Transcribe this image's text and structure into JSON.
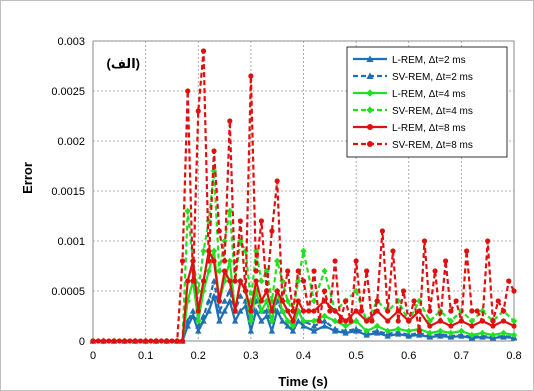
{
  "chart_data": {
    "type": "line",
    "xlabel": "Time (s)",
    "ylabel": "Error",
    "annotation": "(الف)",
    "xlim": [
      0,
      0.8
    ],
    "ylim": [
      0,
      0.003
    ],
    "xticks": [
      0,
      0.1,
      0.2,
      0.3,
      0.4,
      0.5,
      0.6,
      0.7,
      0.8
    ],
    "xtick_labels": [
      "0",
      "0.1",
      "0.2",
      "0.3",
      "0.4",
      "0.5",
      "0.6",
      "0.7",
      "0.8"
    ],
    "yticks": [
      0,
      0.0005,
      0.001,
      0.0015,
      0.002,
      0.0025,
      0.003
    ],
    "ytick_labels": [
      "0",
      "0.0005",
      "0.001",
      "0.0015",
      "0.002",
      "0.0025",
      "0.003"
    ],
    "grid": true,
    "legend_position": "top-right",
    "series": [
      {
        "name": "L-REM, Δt=2 ms",
        "color": "#1f6fb5",
        "dashed": false,
        "marker": "triangle",
        "x": [
          0,
          0.02,
          0.04,
          0.06,
          0.08,
          0.1,
          0.12,
          0.14,
          0.16,
          0.17,
          0.18,
          0.19,
          0.2,
          0.21,
          0.22,
          0.23,
          0.24,
          0.25,
          0.26,
          0.27,
          0.28,
          0.29,
          0.3,
          0.31,
          0.32,
          0.33,
          0.34,
          0.35,
          0.36,
          0.37,
          0.38,
          0.39,
          0.4,
          0.42,
          0.44,
          0.46,
          0.48,
          0.5,
          0.52,
          0.54,
          0.56,
          0.58,
          0.6,
          0.62,
          0.64,
          0.66,
          0.68,
          0.7,
          0.72,
          0.74,
          0.76,
          0.78,
          0.8
        ],
        "y": [
          0,
          0,
          0,
          0,
          0,
          0,
          0,
          0,
          0,
          0,
          0.00015,
          0.00025,
          0.0001,
          0.0002,
          0.0003,
          0.00045,
          0.0002,
          0.0003,
          0.0004,
          0.0002,
          0.0003,
          0.00035,
          0.0001,
          0.0003,
          0.0002,
          0.00025,
          0.0001,
          0.0003,
          0.0002,
          0.00015,
          0.0001,
          0.0002,
          0.00015,
          0.0001,
          0.00015,
          0.0001,
          8e-05,
          0.0001,
          6e-05,
          8e-05,
          5e-05,
          7e-05,
          5e-05,
          6e-05,
          4e-05,
          5e-05,
          4e-05,
          5e-05,
          3e-05,
          4e-05,
          3e-05,
          4e-05,
          3e-05
        ]
      },
      {
        "name": "SV-REM, Δt=2 ms",
        "color": "#1f6fb5",
        "dashed": true,
        "marker": "triangle",
        "x": [
          0,
          0.02,
          0.04,
          0.06,
          0.08,
          0.1,
          0.12,
          0.14,
          0.16,
          0.17,
          0.18,
          0.19,
          0.2,
          0.21,
          0.22,
          0.23,
          0.24,
          0.25,
          0.26,
          0.27,
          0.28,
          0.29,
          0.3,
          0.31,
          0.32,
          0.33,
          0.34,
          0.35,
          0.36,
          0.37,
          0.38,
          0.39,
          0.4,
          0.42,
          0.44,
          0.46,
          0.48,
          0.5,
          0.52,
          0.54,
          0.56,
          0.58,
          0.6,
          0.62,
          0.64,
          0.66,
          0.68,
          0.7,
          0.72,
          0.74,
          0.76,
          0.78,
          0.8
        ],
        "y": [
          0,
          0,
          0,
          0,
          0,
          0,
          0,
          0,
          0,
          0,
          0.0002,
          0.0003,
          0.00015,
          0.00025,
          0.0004,
          0.0006,
          0.0003,
          0.0004,
          0.0005,
          0.0003,
          0.00045,
          0.0004,
          0.0002,
          0.0004,
          0.0003,
          0.0003,
          0.0002,
          0.0004,
          0.0003,
          0.0002,
          0.00015,
          0.0003,
          0.0002,
          0.00015,
          0.0002,
          0.00012,
          0.0001,
          0.00012,
          8e-05,
          0.0001,
          7e-05,
          9e-05,
          6e-05,
          8e-05,
          5e-05,
          7e-05,
          5e-05,
          6e-05,
          4e-05,
          5e-05,
          4e-05,
          5e-05,
          4e-05
        ]
      },
      {
        "name": "L-REM, Δt=4 ms",
        "color": "#22e022",
        "dashed": false,
        "marker": "diamond",
        "x": [
          0,
          0.02,
          0.04,
          0.06,
          0.08,
          0.1,
          0.12,
          0.14,
          0.16,
          0.17,
          0.18,
          0.19,
          0.2,
          0.21,
          0.22,
          0.23,
          0.24,
          0.25,
          0.26,
          0.27,
          0.28,
          0.29,
          0.3,
          0.31,
          0.32,
          0.33,
          0.34,
          0.35,
          0.36,
          0.37,
          0.38,
          0.39,
          0.4,
          0.42,
          0.44,
          0.46,
          0.48,
          0.5,
          0.52,
          0.54,
          0.56,
          0.58,
          0.6,
          0.62,
          0.64,
          0.66,
          0.68,
          0.7,
          0.72,
          0.74,
          0.76,
          0.78,
          0.8
        ],
        "y": [
          0,
          0,
          0,
          0,
          0,
          0,
          0,
          0,
          0,
          0,
          0.0004,
          0.0006,
          0.0002,
          0.0005,
          0.0007,
          0.0009,
          0.0004,
          0.0006,
          0.0008,
          0.0003,
          0.0006,
          0.0005,
          0.0002,
          0.0005,
          0.0003,
          0.0004,
          0.0002,
          0.0005,
          0.0003,
          0.0002,
          0.00015,
          0.0003,
          0.0002,
          0.0002,
          0.00025,
          0.0002,
          0.00015,
          0.0002,
          0.0001,
          0.00015,
          0.0001,
          0.00012,
          0.0001,
          0.00012,
          8e-05,
          0.0001,
          8e-05,
          0.0001,
          6e-05,
          8e-05,
          6e-05,
          8e-05,
          6e-05
        ]
      },
      {
        "name": "SV-REM, Δt=4 ms",
        "color": "#22e022",
        "dashed": true,
        "marker": "diamond",
        "x": [
          0,
          0.02,
          0.04,
          0.06,
          0.08,
          0.1,
          0.12,
          0.14,
          0.16,
          0.17,
          0.18,
          0.19,
          0.2,
          0.21,
          0.22,
          0.23,
          0.24,
          0.25,
          0.26,
          0.27,
          0.28,
          0.29,
          0.3,
          0.31,
          0.32,
          0.33,
          0.34,
          0.35,
          0.36,
          0.37,
          0.38,
          0.39,
          0.4,
          0.42,
          0.44,
          0.46,
          0.48,
          0.5,
          0.52,
          0.54,
          0.56,
          0.58,
          0.6,
          0.62,
          0.64,
          0.66,
          0.68,
          0.7,
          0.72,
          0.74,
          0.76,
          0.78,
          0.8
        ],
        "y": [
          0,
          0,
          0,
          0,
          0,
          0,
          0,
          0,
          0,
          0,
          0.0013,
          0.0008,
          0.0005,
          0.0009,
          0.0012,
          0.0017,
          0.0007,
          0.001,
          0.0013,
          0.0006,
          0.001,
          0.0009,
          0.0004,
          0.0009,
          0.0006,
          0.0007,
          0.0004,
          0.0008,
          0.0006,
          0.0004,
          0.0003,
          0.0006,
          0.0009,
          0.0004,
          0.0007,
          0.0003,
          0.0004,
          0.0005,
          0.0002,
          0.0004,
          0.0003,
          0.0004,
          0.0002,
          0.0004,
          0.0002,
          0.0003,
          0.0002,
          0.0003,
          0.0002,
          0.0003,
          0.0002,
          0.0003,
          0.0002
        ]
      },
      {
        "name": "L-REM, Δt=8 ms",
        "color": "#e01010",
        "dashed": false,
        "marker": "circle",
        "x": [
          0,
          0.02,
          0.04,
          0.06,
          0.08,
          0.1,
          0.12,
          0.14,
          0.16,
          0.17,
          0.18,
          0.19,
          0.2,
          0.21,
          0.22,
          0.23,
          0.24,
          0.25,
          0.26,
          0.27,
          0.28,
          0.29,
          0.3,
          0.31,
          0.32,
          0.33,
          0.34,
          0.35,
          0.36,
          0.37,
          0.38,
          0.39,
          0.4,
          0.42,
          0.44,
          0.46,
          0.48,
          0.5,
          0.52,
          0.54,
          0.56,
          0.58,
          0.6,
          0.62,
          0.64,
          0.66,
          0.68,
          0.7,
          0.72,
          0.74,
          0.76,
          0.78,
          0.8
        ],
        "y": [
          0,
          0,
          0,
          0,
          0,
          0,
          0,
          0,
          0,
          0,
          0.0006,
          0.0008,
          0.0003,
          0.0006,
          0.0009,
          0.0008,
          0.0004,
          0.0007,
          0.0006,
          0.0003,
          0.0006,
          0.0005,
          0.0003,
          0.0006,
          0.0004,
          0.0005,
          0.0003,
          0.0005,
          0.0004,
          0.0003,
          0.0002,
          0.0004,
          0.0003,
          0.0003,
          0.0004,
          0.0003,
          0.0002,
          0.0003,
          0.0002,
          0.0003,
          0.0002,
          0.0003,
          0.0002,
          0.0003,
          0.00015,
          0.0002,
          0.00015,
          0.0002,
          0.00015,
          0.0002,
          0.00015,
          0.0002,
          0.00015
        ]
      },
      {
        "name": "SV-REM, Δt=8 ms",
        "color": "#e01010",
        "dashed": true,
        "marker": "circle",
        "x": [
          0,
          0.01,
          0.02,
          0.03,
          0.04,
          0.05,
          0.06,
          0.07,
          0.08,
          0.09,
          0.1,
          0.11,
          0.12,
          0.13,
          0.14,
          0.15,
          0.16,
          0.17,
          0.18,
          0.19,
          0.2,
          0.21,
          0.22,
          0.23,
          0.24,
          0.25,
          0.26,
          0.27,
          0.28,
          0.29,
          0.3,
          0.31,
          0.32,
          0.33,
          0.34,
          0.35,
          0.36,
          0.37,
          0.38,
          0.39,
          0.4,
          0.41,
          0.42,
          0.43,
          0.44,
          0.45,
          0.46,
          0.47,
          0.48,
          0.49,
          0.5,
          0.51,
          0.52,
          0.53,
          0.54,
          0.55,
          0.56,
          0.57,
          0.58,
          0.59,
          0.6,
          0.61,
          0.62,
          0.63,
          0.64,
          0.65,
          0.66,
          0.67,
          0.68,
          0.69,
          0.7,
          0.71,
          0.72,
          0.73,
          0.74,
          0.75,
          0.76,
          0.77,
          0.78,
          0.79,
          0.8
        ],
        "y": [
          0,
          0,
          0,
          0,
          0,
          0,
          0,
          0,
          0,
          0,
          0,
          0,
          0,
          0,
          0,
          0,
          0,
          0.0008,
          0.0025,
          0.0006,
          0.0023,
          0.0029,
          0.0008,
          0.0019,
          0.0011,
          0.0008,
          0.0022,
          0.0006,
          0.0012,
          0.0005,
          0.00265,
          0.0007,
          0.0012,
          0.0005,
          0.0011,
          0.0016,
          0.0004,
          0.0007,
          0.0003,
          0.0007,
          0.0006,
          0.0003,
          0.0007,
          0.0002,
          0.0005,
          0.0003,
          0.0008,
          0.0002,
          0.0004,
          0.0002,
          0.0008,
          0.0003,
          0.0007,
          0.0002,
          0.0004,
          0.0011,
          0.0003,
          0.0009,
          0.0002,
          0.0005,
          0.0002,
          0.0004,
          0.0001,
          0.001,
          0.0003,
          0.0007,
          0.0002,
          0.0008,
          0.0003,
          0.0004,
          0.0002,
          0.0009,
          0.0003,
          0.0003,
          0.0002,
          0.001,
          0.0002,
          0.0004,
          0.0003,
          0.0006,
          0.0005
        ]
      }
    ]
  }
}
